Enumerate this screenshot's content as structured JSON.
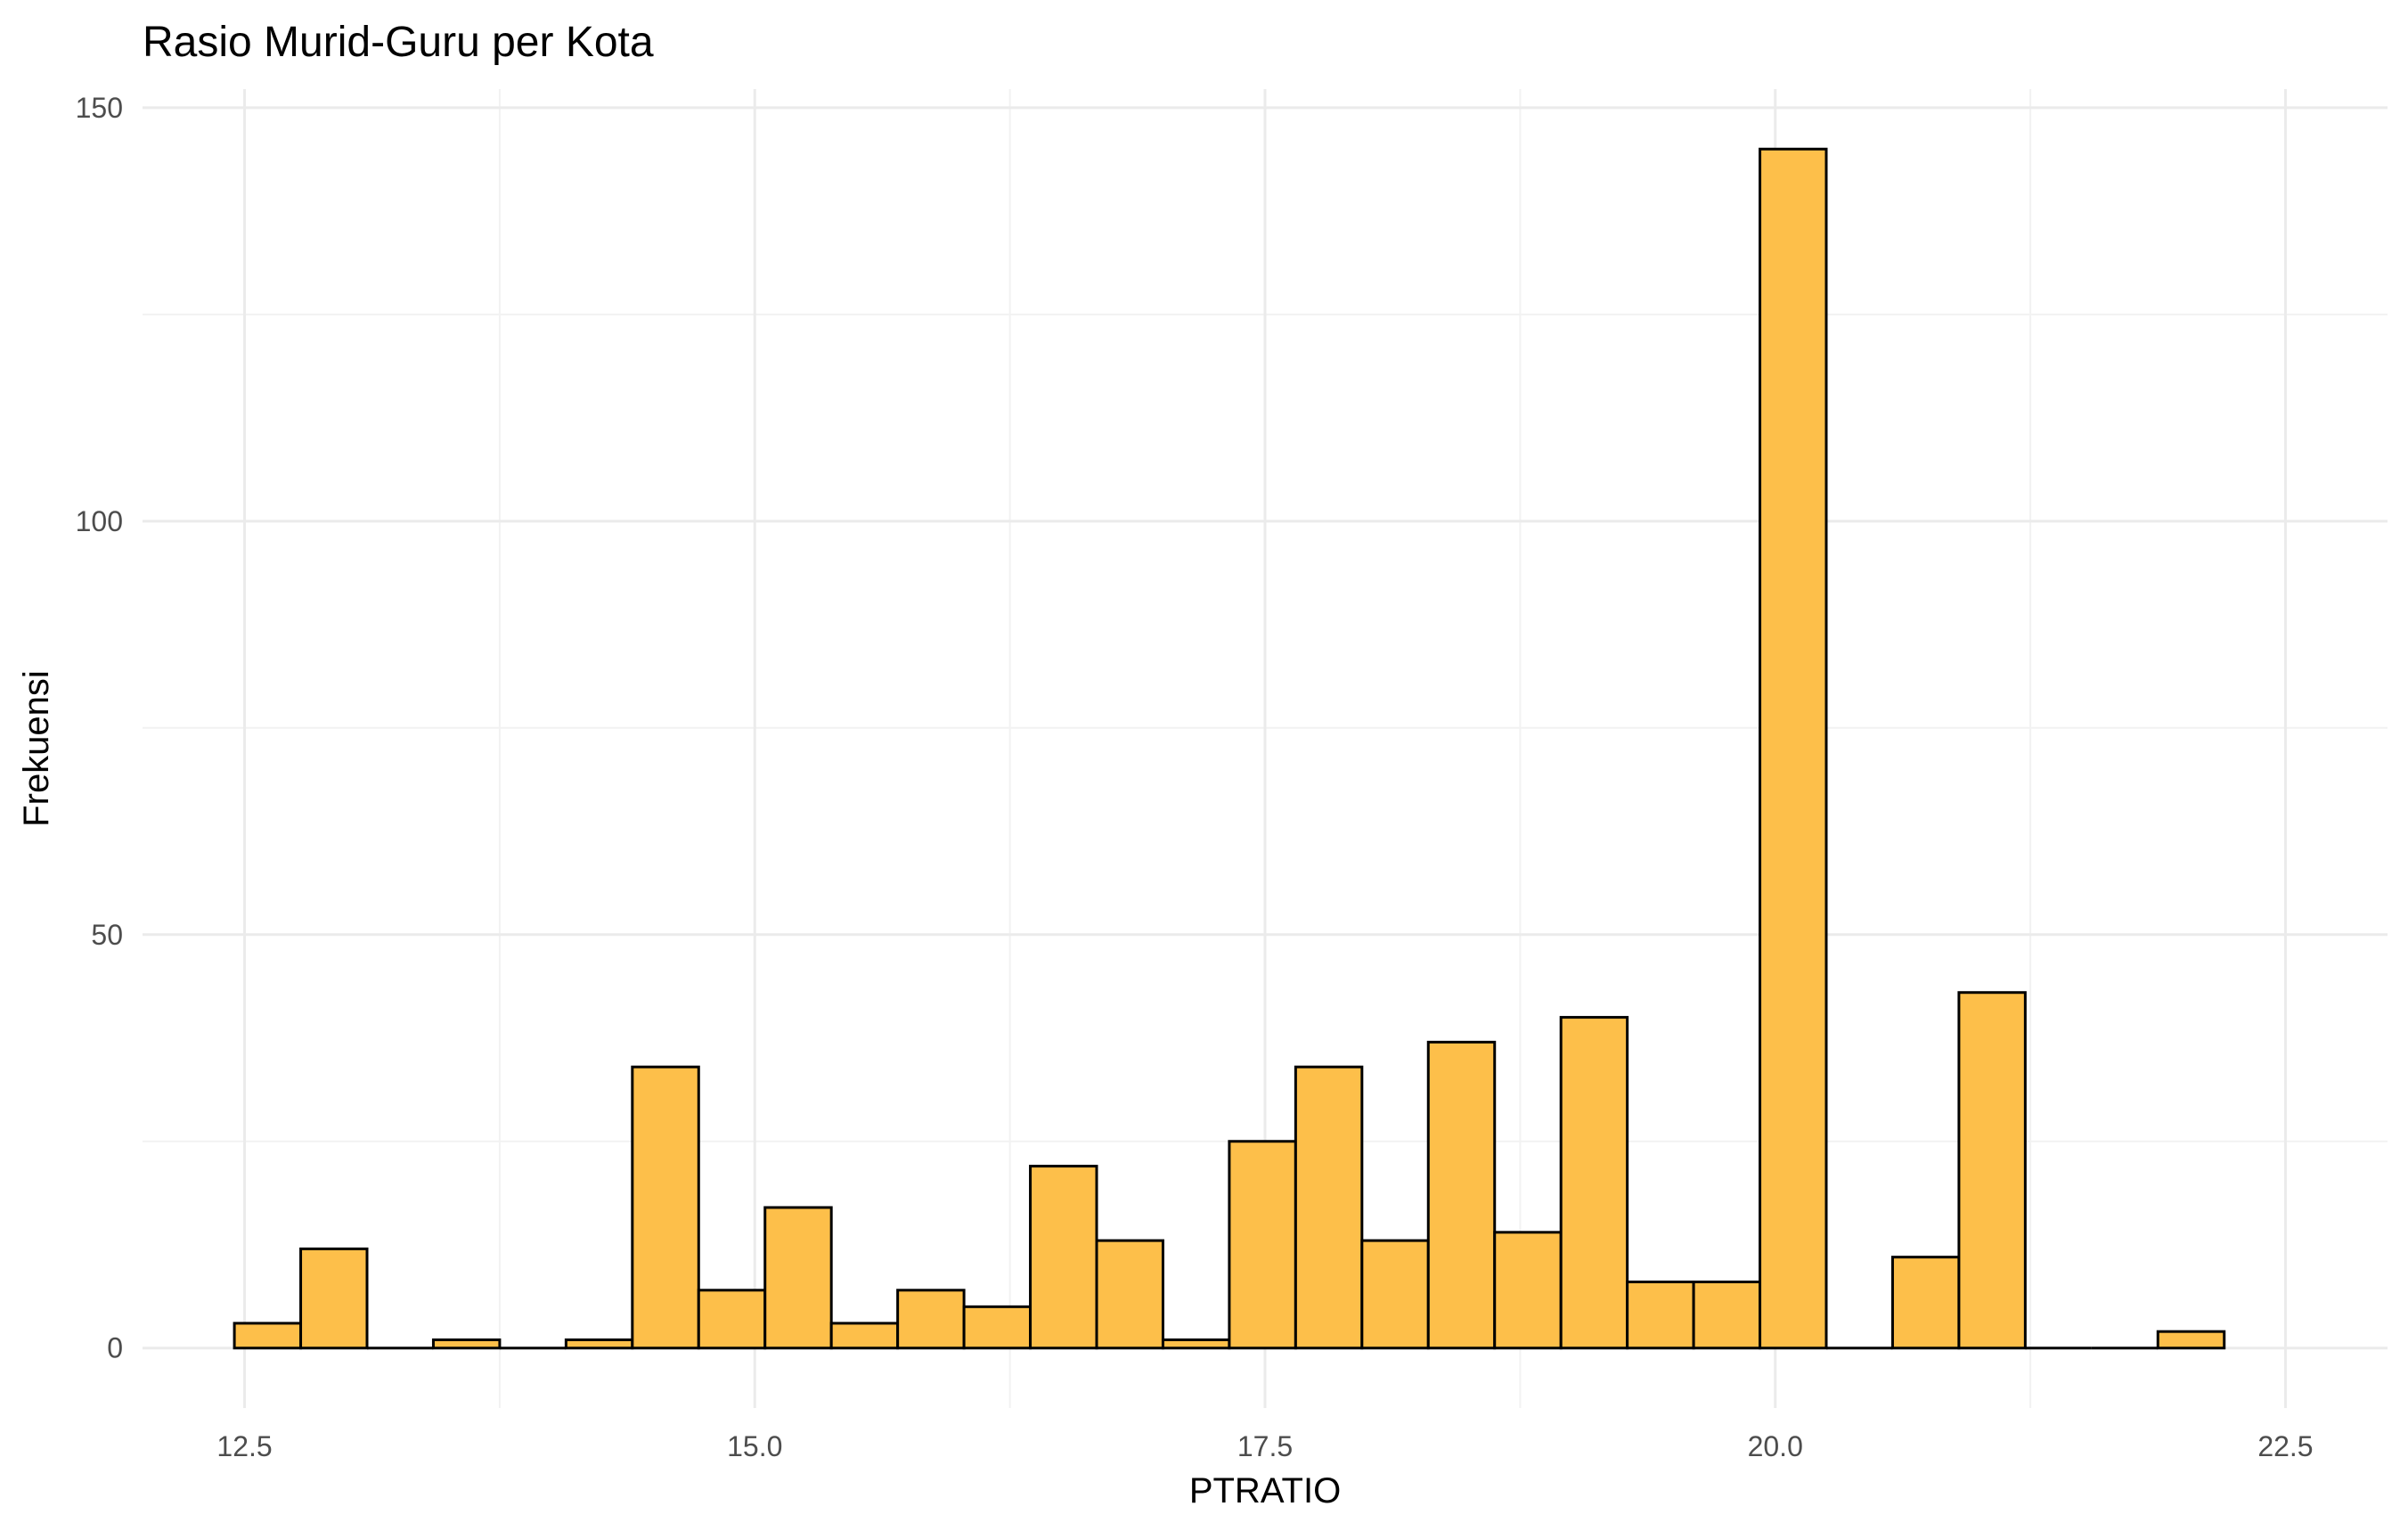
{
  "chart_data": {
    "type": "bar",
    "title": "Rasio Murid-Guru per Kota",
    "xlabel": "PTRATIO",
    "ylabel": "Frekuensi",
    "bins": [
      {
        "x0": 12.45,
        "x1": 12.775,
        "count": 3
      },
      {
        "x0": 12.775,
        "x1": 13.1,
        "count": 12
      },
      {
        "x0": 13.1,
        "x1": 13.425,
        "count": 0
      },
      {
        "x0": 13.425,
        "x1": 13.75,
        "count": 1
      },
      {
        "x0": 13.75,
        "x1": 14.075,
        "count": 0
      },
      {
        "x0": 14.075,
        "x1": 14.4,
        "count": 1
      },
      {
        "x0": 14.4,
        "x1": 14.725,
        "count": 34
      },
      {
        "x0": 14.725,
        "x1": 15.05,
        "count": 7
      },
      {
        "x0": 15.05,
        "x1": 15.375,
        "count": 17
      },
      {
        "x0": 15.375,
        "x1": 15.7,
        "count": 3
      },
      {
        "x0": 15.7,
        "x1": 16.025,
        "count": 7
      },
      {
        "x0": 16.025,
        "x1": 16.35,
        "count": 5
      },
      {
        "x0": 16.35,
        "x1": 16.675,
        "count": 22
      },
      {
        "x0": 16.675,
        "x1": 17.0,
        "count": 13
      },
      {
        "x0": 17.0,
        "x1": 17.325,
        "count": 1
      },
      {
        "x0": 17.325,
        "x1": 17.65,
        "count": 25
      },
      {
        "x0": 17.65,
        "x1": 17.975,
        "count": 34
      },
      {
        "x0": 17.975,
        "x1": 18.3,
        "count": 13
      },
      {
        "x0": 18.3,
        "x1": 18.625,
        "count": 37
      },
      {
        "x0": 18.625,
        "x1": 18.95,
        "count": 14
      },
      {
        "x0": 18.95,
        "x1": 19.275,
        "count": 40
      },
      {
        "x0": 19.275,
        "x1": 19.6,
        "count": 8
      },
      {
        "x0": 19.6,
        "x1": 19.925,
        "count": 8
      },
      {
        "x0": 19.925,
        "x1": 20.25,
        "count": 145
      },
      {
        "x0": 20.25,
        "x1": 20.575,
        "count": 0
      },
      {
        "x0": 20.575,
        "x1": 20.9,
        "count": 11
      },
      {
        "x0": 20.9,
        "x1": 21.225,
        "count": 43
      },
      {
        "x0": 21.225,
        "x1": 21.55,
        "count": 0
      },
      {
        "x0": 21.55,
        "x1": 21.875,
        "count": 0
      },
      {
        "x0": 21.875,
        "x1": 22.2,
        "count": 2
      }
    ],
    "xlim": [
      12.0,
      23.0
    ],
    "ylim": [
      -7.25,
      152.25
    ],
    "x_ticks": [
      12.5,
      15.0,
      17.5,
      20.0,
      22.5
    ],
    "x_tick_labels": [
      "12.5",
      "15.0",
      "17.5",
      "20.0",
      "22.5"
    ],
    "y_ticks": [
      0,
      50,
      100,
      150
    ],
    "y_tick_labels": [
      "0",
      "50",
      "100",
      "150"
    ],
    "grid": true,
    "legend": "none",
    "fill_color": "#fdbf4a",
    "edge_color": "#000000"
  }
}
